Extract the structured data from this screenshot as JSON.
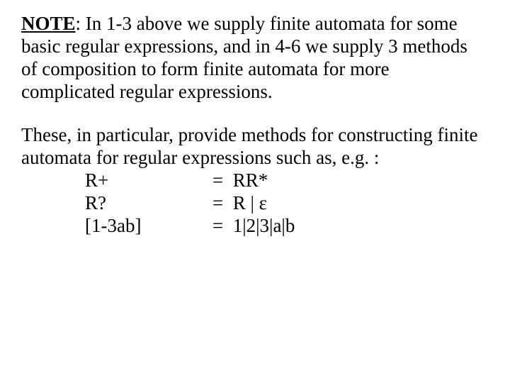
{
  "note_label": "NOTE",
  "para1_after_note": ":   In 1-3 above we supply finite automata for some basic regular expressions, and in 4-6  we supply 3 methods of composition to form finite automata for more complicated regular expressions.",
  "para2": "These, in particular, provide methods for constructing finite automata for regular expressions such as, e.g. :",
  "eq1_left": "R+",
  "eq1_right": "=  RR*",
  "eq2_left": "R?",
  "eq2_right": "=  R | ε",
  "eq3_left": "[1-3ab]",
  "eq3_right": "=  1|2|3|a|b"
}
